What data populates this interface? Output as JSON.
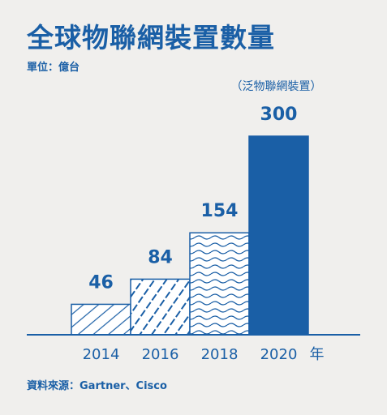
{
  "title": "全球物聯網裝置數量",
  "unit_label": "單位：億台",
  "source_label": "資料來源：Gartner、Cisco",
  "colors": {
    "accent": "#1a5fa6",
    "background": "#f0efed",
    "bar_fill": "#ffffff"
  },
  "chart_data": {
    "type": "bar",
    "title": "全球物聯網裝置數量",
    "xlabel": "年",
    "ylabel": "單位：億台",
    "categories": [
      "2014",
      "2016",
      "2018",
      "2020"
    ],
    "values": [
      46,
      84,
      154,
      300
    ],
    "value_labels": [
      "46",
      "84",
      "154",
      "300"
    ],
    "annotation": "（泛物聯網裝置）",
    "annotation_category": "2020",
    "bar_styles": [
      "diagonal-lines",
      "dashed-diagonal-lines",
      "wavy-lines",
      "solid"
    ],
    "ylim": [
      0,
      300
    ],
    "grid": false,
    "legend": "none"
  }
}
